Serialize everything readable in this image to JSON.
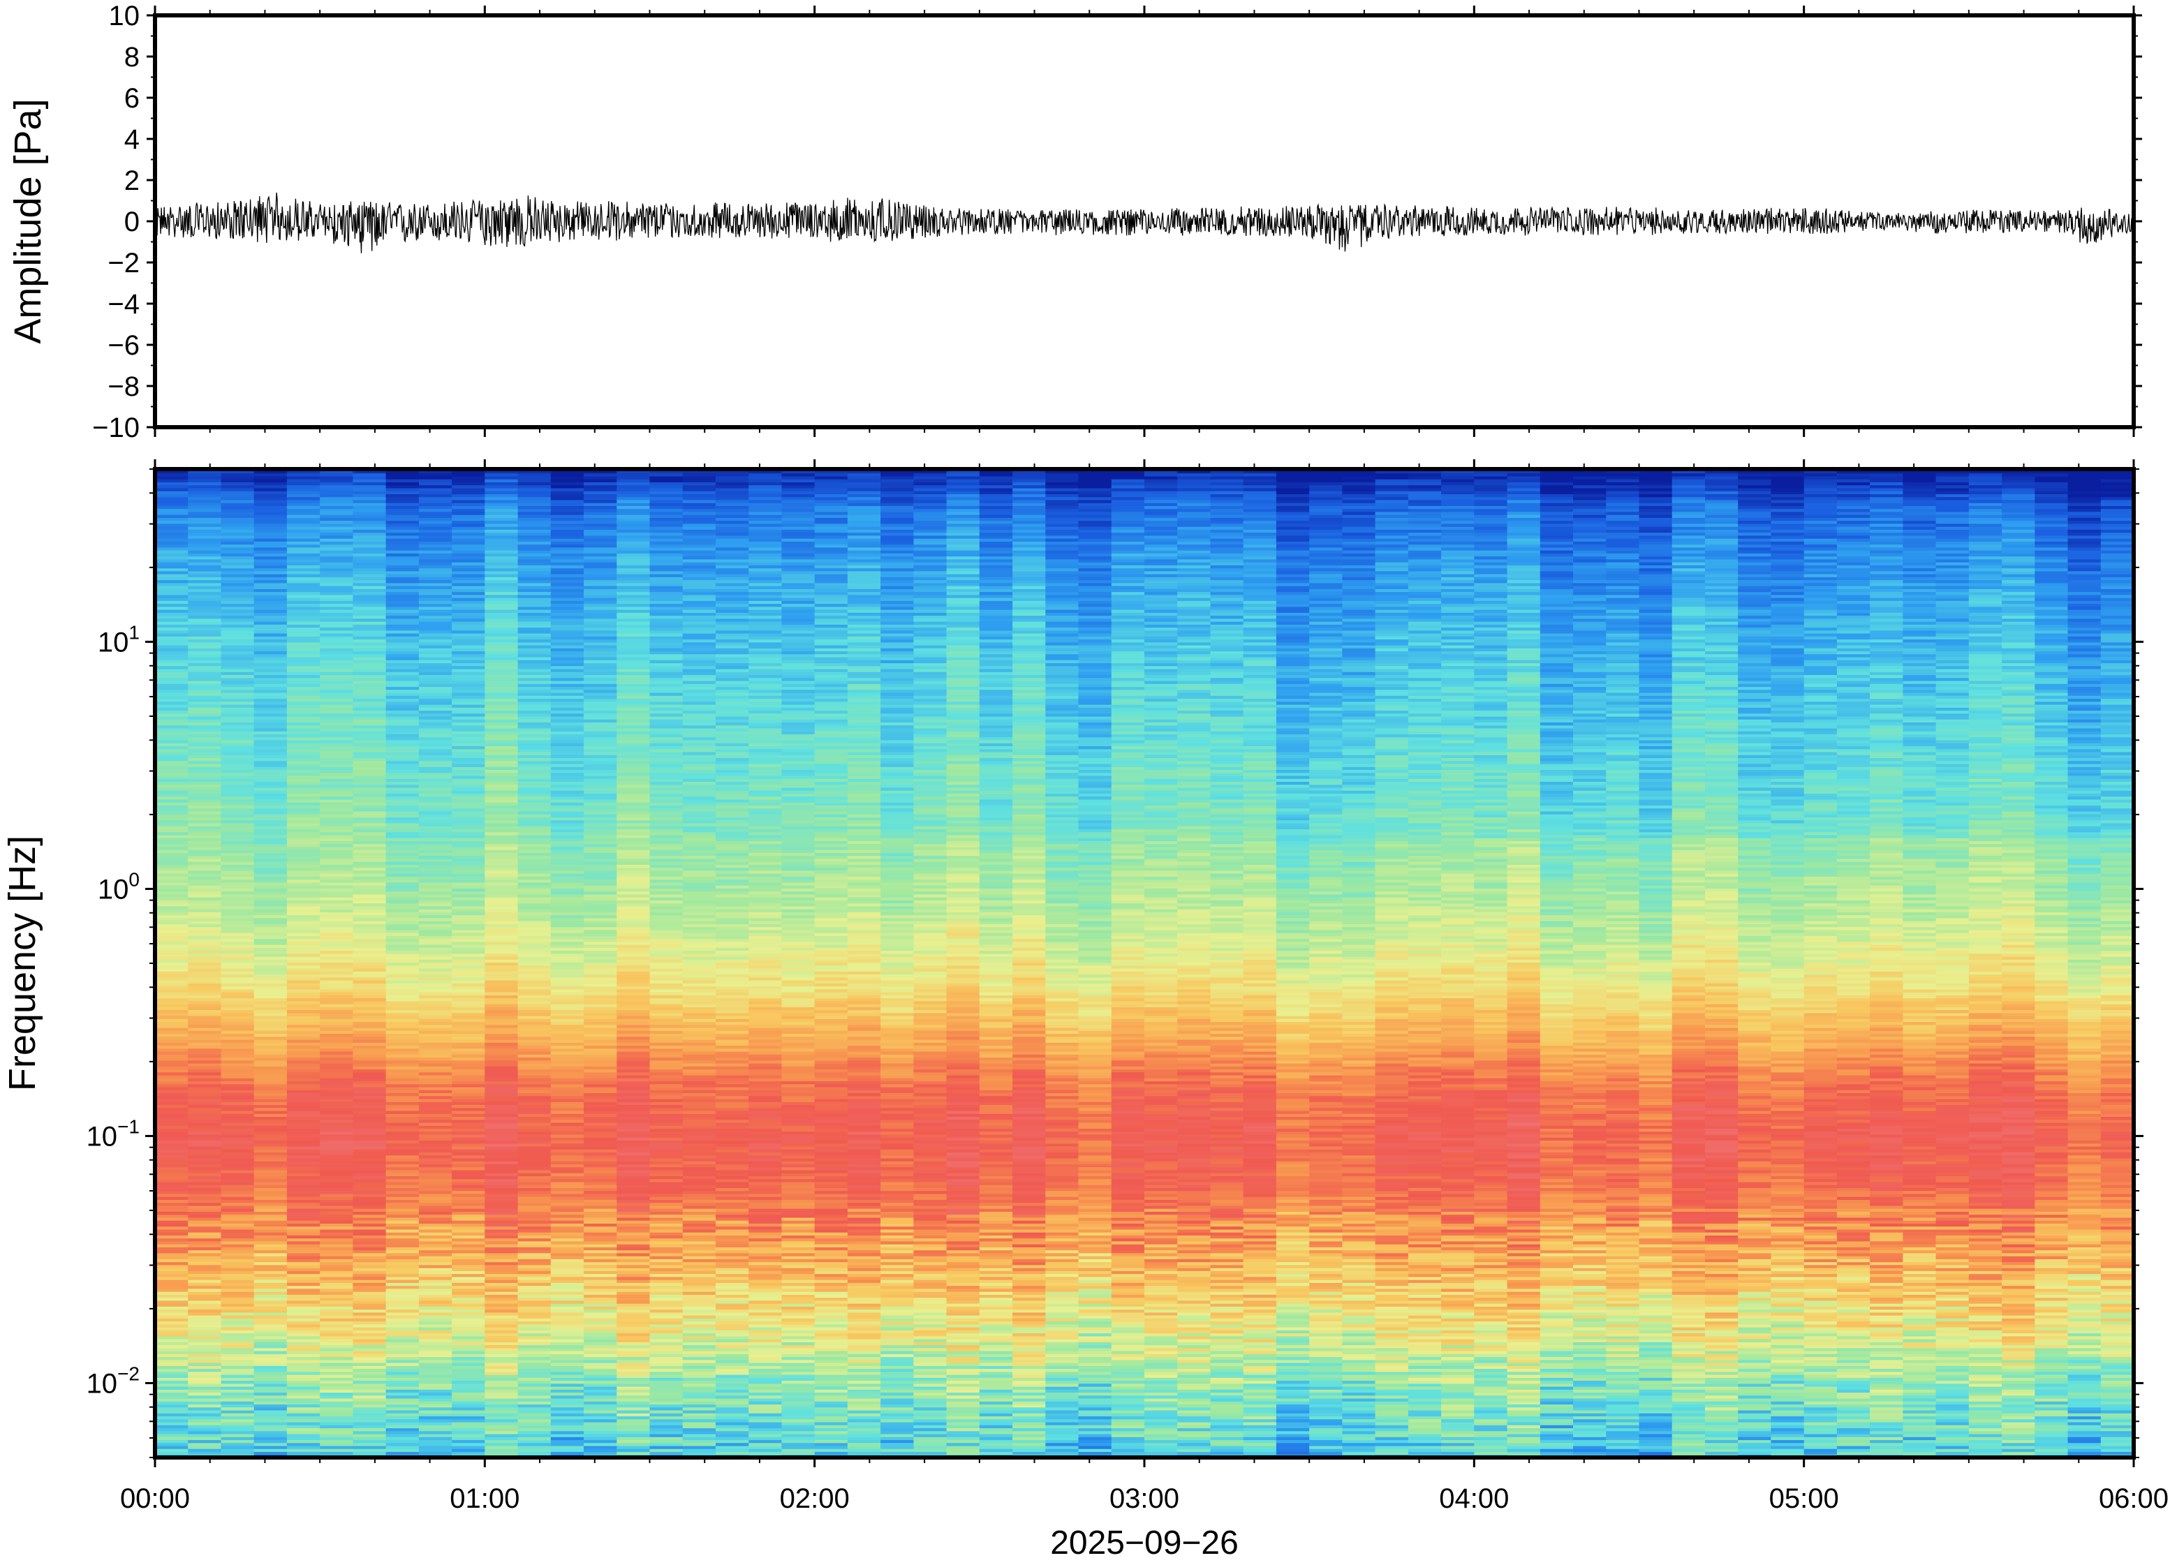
{
  "chart_data": [
    {
      "type": "line",
      "panel": "waveform",
      "ylabel": "Amplitude [Pa]",
      "ylim": [
        -10,
        10
      ],
      "yticks": [
        10,
        8,
        6,
        4,
        2,
        0,
        -2,
        -4,
        -6,
        -8,
        -10
      ],
      "ytick_labels": [
        "10",
        "8",
        "6",
        "4",
        "2",
        "0",
        "−2",
        "−4",
        "−6",
        "−8",
        "−10"
      ],
      "x_range_hours": [
        0,
        6
      ],
      "envelope": {
        "x_hours": [
          0.0,
          0.25,
          0.35,
          0.5,
          0.65,
          0.8,
          1.0,
          1.1,
          1.25,
          1.5,
          1.75,
          2.0,
          2.15,
          2.3,
          2.5,
          2.75,
          3.0,
          3.25,
          3.5,
          3.6,
          3.75,
          4.0,
          4.25,
          4.5,
          4.75,
          5.0,
          5.25,
          5.4,
          5.6,
          5.75,
          5.85,
          6.0
        ],
        "upper": [
          0.8,
          1.0,
          1.5,
          0.9,
          1.0,
          0.9,
          1.1,
          1.4,
          1.0,
          1.0,
          0.9,
          1.0,
          1.3,
          0.8,
          0.6,
          0.6,
          0.6,
          0.7,
          0.8,
          0.8,
          0.8,
          0.7,
          0.7,
          0.7,
          0.6,
          0.7,
          0.4,
          0.5,
          0.6,
          0.5,
          0.7,
          0.5
        ],
        "lower": [
          -0.8,
          -0.9,
          -1.1,
          -0.9,
          -1.7,
          -1.0,
          -1.2,
          -1.4,
          -1.0,
          -0.9,
          -0.8,
          -0.9,
          -1.2,
          -0.9,
          -0.6,
          -0.7,
          -0.7,
          -0.7,
          -0.8,
          -1.6,
          -0.8,
          -0.7,
          -0.7,
          -0.7,
          -0.6,
          -0.7,
          -0.4,
          -0.6,
          -0.6,
          -0.5,
          -1.2,
          -0.5
        ]
      }
    },
    {
      "type": "heatmap",
      "panel": "spectrogram",
      "ylabel": "Frequency [Hz]",
      "y_scale": "log",
      "ylim": [
        0.005,
        50
      ],
      "yticks": [
        {
          "base": "10",
          "exp": "1",
          "value": 10
        },
        {
          "base": "10",
          "exp": "0",
          "value": 1
        },
        {
          "base": "10",
          "exp": "−1",
          "value": 0.1
        },
        {
          "base": "10",
          "exp": "−2",
          "value": 0.01
        }
      ],
      "colormap": "jet (blue = low power, red = high power)",
      "colormap_stops": [
        "#0a1fa0",
        "#1a5fe0",
        "#2fa0f0",
        "#5fe0e0",
        "#9fe8a0",
        "#e8f090",
        "#f8c860",
        "#f89850",
        "#f05a50",
        "#f07070"
      ],
      "time_columns": 60,
      "column_hours": 0.1,
      "power_profile": {
        "log10_freq": [
          -2.3,
          -2.0,
          -1.8,
          -1.5,
          -1.2,
          -1.0,
          -0.8,
          -0.6,
          -0.4,
          -0.2,
          0.0,
          0.3,
          0.6,
          1.0,
          1.3,
          1.55,
          1.7
        ],
        "level": [
          0.3,
          0.42,
          0.55,
          0.72,
          0.86,
          0.9,
          0.85,
          0.72,
          0.6,
          0.52,
          0.46,
          0.4,
          0.36,
          0.3,
          0.24,
          0.16,
          0.02
        ]
      }
    }
  ],
  "xaxis": {
    "range_hours": [
      0,
      6
    ],
    "ticks": [
      {
        "hour": 0,
        "label": "00:00"
      },
      {
        "hour": 1,
        "label": "01:00"
      },
      {
        "hour": 2,
        "label": "02:00"
      },
      {
        "hour": 3,
        "label": "03:00"
      },
      {
        "hour": 4,
        "label": "04:00"
      },
      {
        "hour": 5,
        "label": "05:00"
      },
      {
        "hour": 6,
        "label": "06:00"
      }
    ],
    "date_label": "2025−09−26"
  }
}
